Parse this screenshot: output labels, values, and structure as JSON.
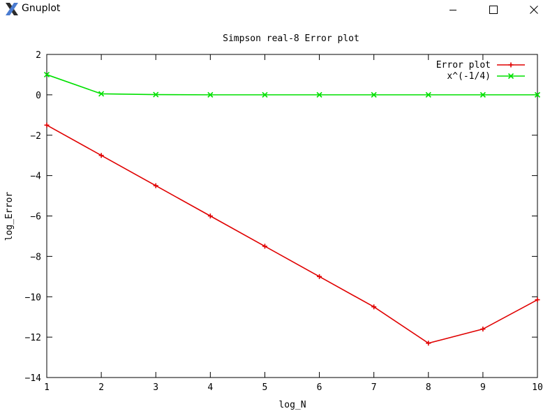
{
  "window": {
    "title": "Gnuplot",
    "app_icon": "gnuplot-x-logo",
    "controls": [
      "minimize-icon",
      "maximize-icon",
      "close-icon"
    ]
  },
  "chart_data": {
    "type": "line",
    "title": "Simpson real-8 Error plot",
    "xlabel": "log_N",
    "ylabel": "log_Error",
    "xlim": [
      1,
      10
    ],
    "ylim": [
      -14,
      2
    ],
    "xticks": [
      1,
      2,
      3,
      4,
      5,
      6,
      7,
      8,
      9,
      10
    ],
    "yticks": [
      -14,
      -12,
      -10,
      -8,
      -6,
      -4,
      -2,
      0,
      2
    ],
    "grid": false,
    "legend_position": "top-right",
    "series": [
      {
        "name": "Error plot",
        "color": "#e00000",
        "marker": "plus",
        "x": [
          1,
          2,
          3,
          4,
          5,
          6,
          7,
          8,
          9,
          10
        ],
        "y": [
          -1.5,
          -3.0,
          -4.5,
          -6.0,
          -7.5,
          -9.0,
          -10.5,
          -12.3,
          -11.6,
          -10.15
        ]
      },
      {
        "name": "x^(-1/4)",
        "color": "#00e000",
        "marker": "x",
        "x": [
          1,
          2,
          3,
          4,
          5,
          6,
          7,
          8,
          9,
          10
        ],
        "y": [
          1.0,
          0.05,
          0.01,
          0.0,
          0.0,
          0.0,
          0.0,
          0.0,
          0.0,
          0.0
        ]
      }
    ]
  }
}
